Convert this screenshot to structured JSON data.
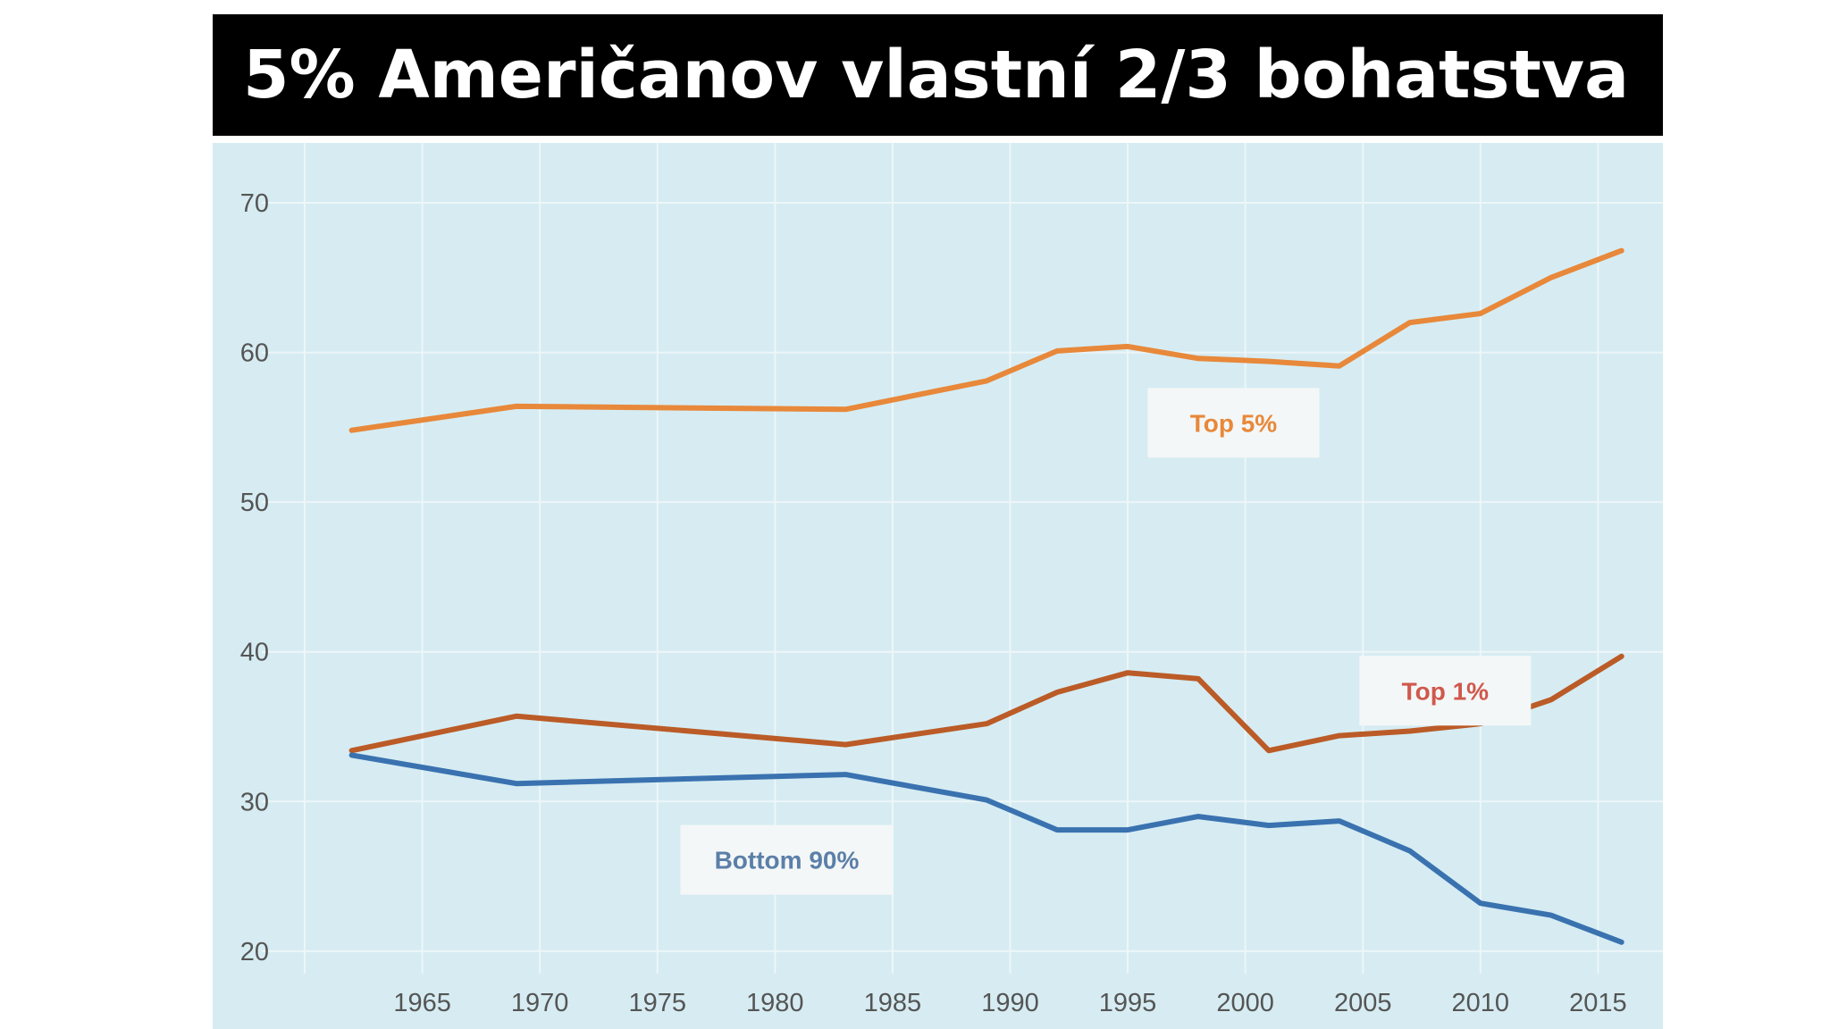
{
  "header": {
    "title": "5% Američanov vlastní 2/3 bohatstva"
  },
  "colors": {
    "title_bg": "#000000",
    "title_fg": "#ffffff",
    "plot_bg": "#d6ecf2",
    "grid": "#edf6f9",
    "label_box": "#f4f7f7"
  },
  "chart_data": {
    "type": "line",
    "title": "",
    "xlabel": "",
    "ylabel": "",
    "xlim": [
      1960,
      2017
    ],
    "ylim": [
      18.5,
      74
    ],
    "x_ticks": [
      1965,
      1970,
      1975,
      1980,
      1985,
      1990,
      1995,
      2000,
      2005,
      2010,
      2015
    ],
    "y_ticks": [
      20,
      30,
      40,
      50,
      60,
      70
    ],
    "grid": true,
    "series": [
      {
        "name": "Top 5%",
        "color": "#e8883a",
        "x": [
          1962,
          1969,
          1983,
          1989,
          1992,
          1995,
          1998,
          2001,
          2004,
          2007,
          2010,
          2013,
          2016
        ],
        "y": [
          54.8,
          56.4,
          56.2,
          58.1,
          60.1,
          60.4,
          59.6,
          59.4,
          59.1,
          62.0,
          62.6,
          65.0,
          66.8
        ]
      },
      {
        "name": "Top 1%",
        "color": "#bb5b27",
        "x": [
          1962,
          1969,
          1983,
          1989,
          1992,
          1995,
          1998,
          2001,
          2004,
          2007,
          2010,
          2013,
          2016
        ],
        "y": [
          33.4,
          35.7,
          33.8,
          35.2,
          37.3,
          38.6,
          38.2,
          33.4,
          34.4,
          34.7,
          35.2,
          36.8,
          39.7
        ]
      },
      {
        "name": "Bottom 90%",
        "color": "#3a72b0",
        "x": [
          1962,
          1969,
          1983,
          1989,
          1992,
          1995,
          1998,
          2001,
          2004,
          2007,
          2010,
          2013,
          2016
        ],
        "y": [
          33.1,
          31.2,
          31.8,
          30.1,
          28.1,
          28.1,
          29.0,
          28.4,
          28.7,
          26.7,
          23.2,
          22.4,
          20.6
        ]
      }
    ],
    "labels": [
      {
        "text": "Top 5%",
        "color": "#e8883a",
        "x": 1999.5,
        "y": 55.3
      },
      {
        "text": "Top 1%",
        "color": "#d0584c",
        "x": 2008.5,
        "y": 37.4
      },
      {
        "text": "Bottom 90%",
        "color": "#5b7fa8",
        "x": 1980.5,
        "y": 26.1
      }
    ]
  }
}
